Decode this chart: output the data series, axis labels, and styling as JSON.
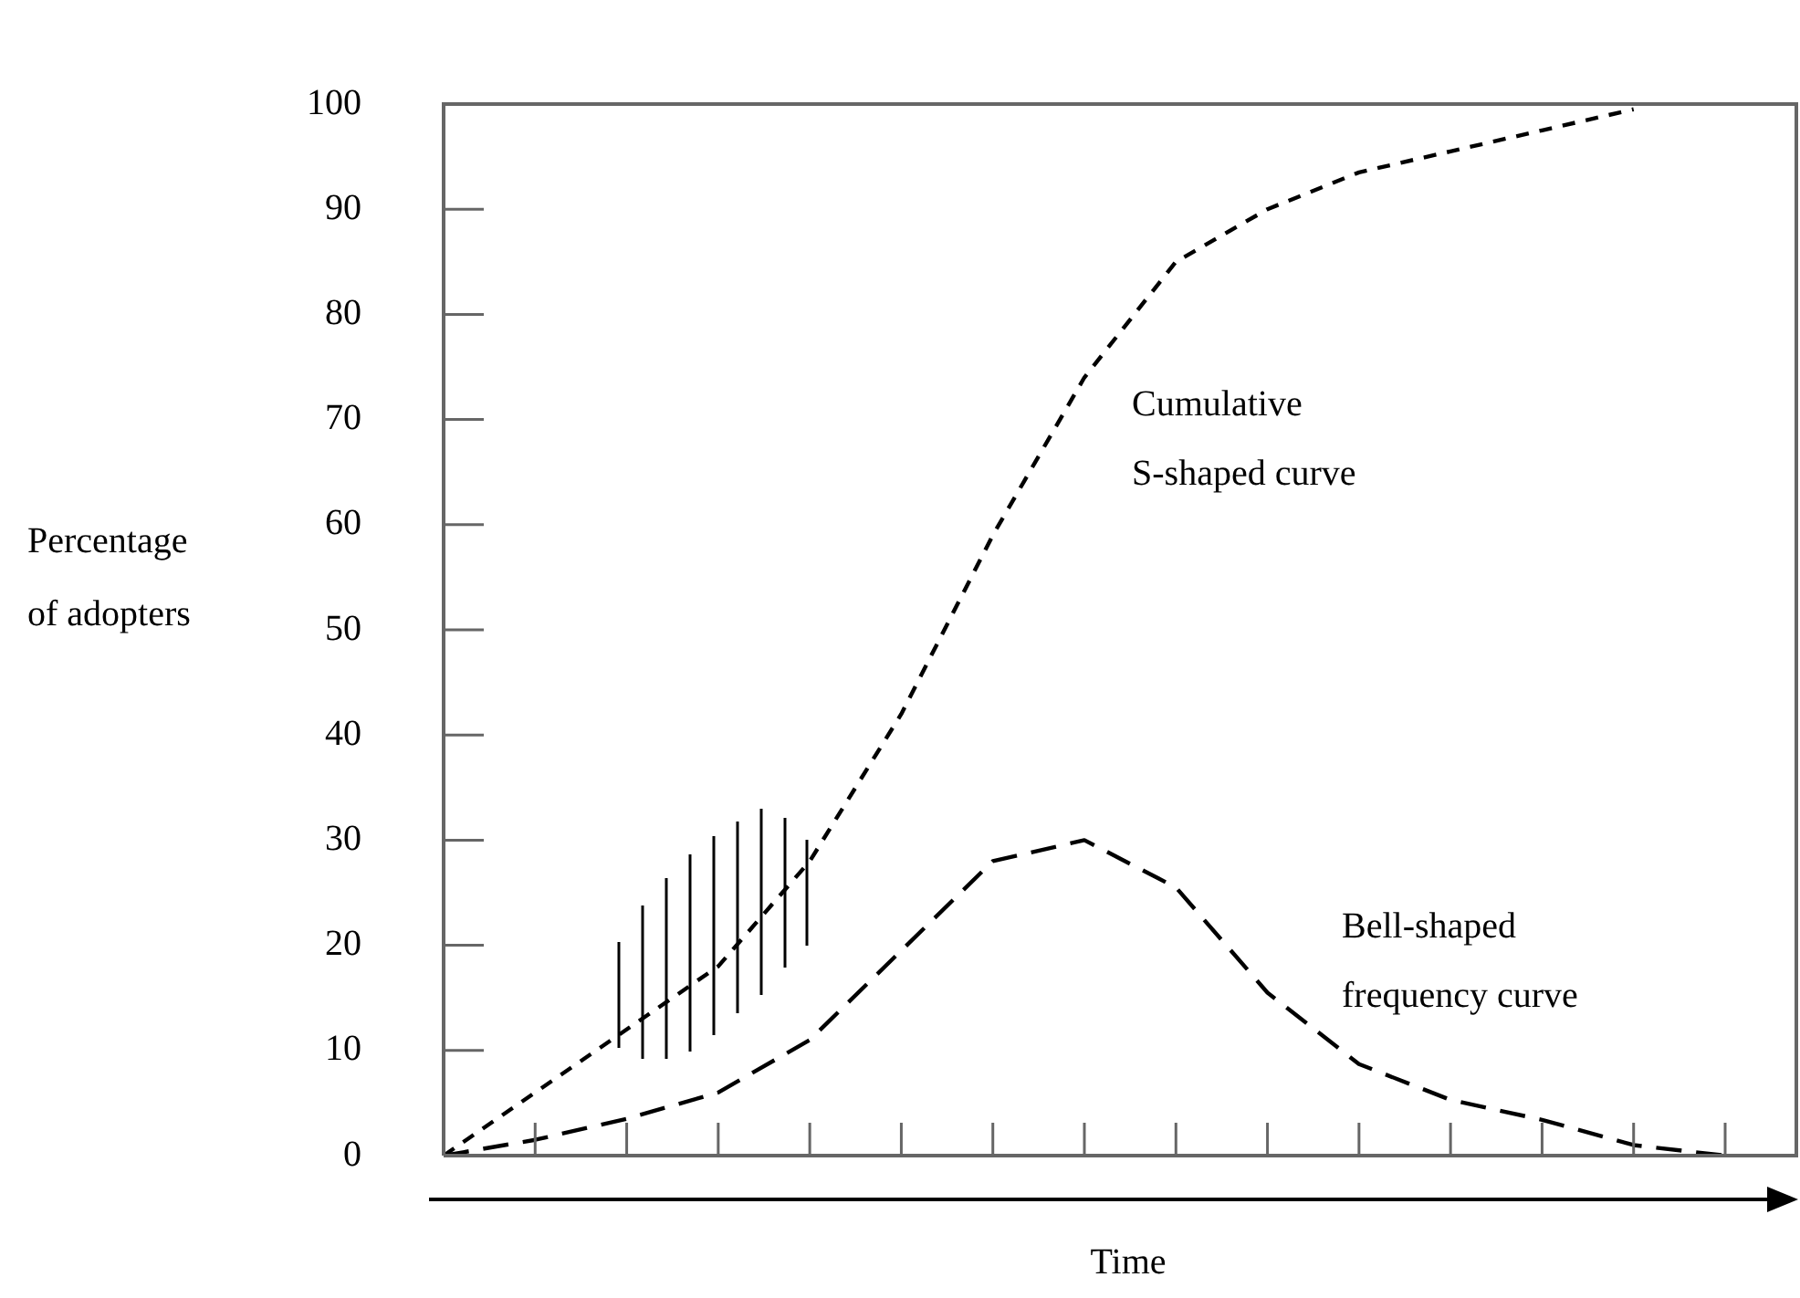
{
  "chart_data": {
    "type": "line",
    "xlabel": "Time",
    "ylabel": "Percentage\nof adopters",
    "categories": [
      null,
      null,
      null,
      null,
      null,
      null,
      null,
      null,
      null,
      null,
      null,
      null,
      null,
      null,
      null
    ],
    "ylim": [
      0,
      100
    ],
    "yticks": [
      0,
      10,
      20,
      30,
      40,
      50,
      60,
      70,
      80,
      90,
      100
    ],
    "tick_labels": "y",
    "grid": false,
    "legend": false,
    "marker": "none",
    "series": [
      {
        "color": "#000000",
        "line_style": "dotted",
        "values": [
          0,
          6,
          12,
          18,
          28,
          42,
          59,
          74,
          85,
          90,
          93.5,
          95.5,
          97.5,
          99.5,
          null
        ]
      },
      {
        "color": "#000000",
        "line_style": "dashed",
        "values": [
          0,
          1.5,
          3.5,
          6,
          11,
          19.5,
          28,
          30,
          25.5,
          15.5,
          8.7,
          5.3,
          3.4,
          1,
          0
        ]
      }
    ],
    "annotations": [
      "Cumulative\nS-shaped curve",
      "Bell-shaped\nfrequency curve"
    ]
  }
}
